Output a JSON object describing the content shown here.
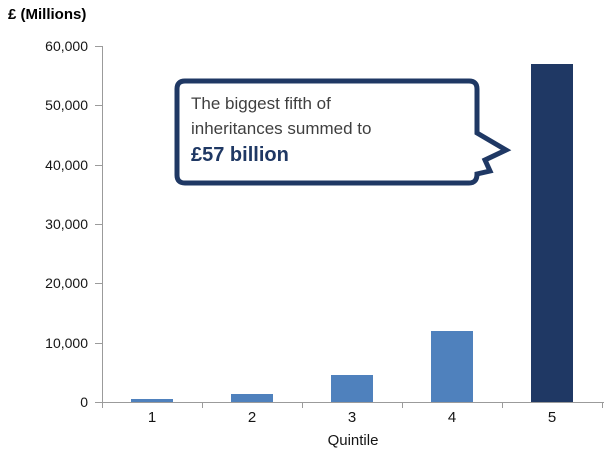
{
  "chart_data": {
    "type": "bar",
    "title": "£ (Millions)",
    "xlabel": "Quintile",
    "ylabel": "£ (Millions)",
    "categories": [
      "1",
      "2",
      "3",
      "4",
      "5"
    ],
    "values": [
      500,
      1300,
      4500,
      12000,
      57000
    ],
    "ylim": [
      0,
      60000
    ],
    "ytick_interval": 10000,
    "ytick_labels": [
      "0",
      "10,000",
      "20,000",
      "30,000",
      "40,000",
      "50,000",
      "60,000"
    ],
    "bar_colors": [
      "#4f81bd",
      "#4f81bd",
      "#4f81bd",
      "#4f81bd",
      "#1f3864"
    ],
    "grid": false,
    "legend": false
  },
  "annotation": {
    "line1": "The biggest fifth of",
    "line2": "inheritances summed to",
    "highlight": "£57 billion"
  },
  "colors": {
    "bar_blue": "#4f81bd",
    "bar_navy": "#1f3864",
    "axis_grey": "#9b9b9b",
    "callout_border": "#1f3864",
    "highlight_text": "#1f3864",
    "body_text": "#3f3f3f"
  }
}
